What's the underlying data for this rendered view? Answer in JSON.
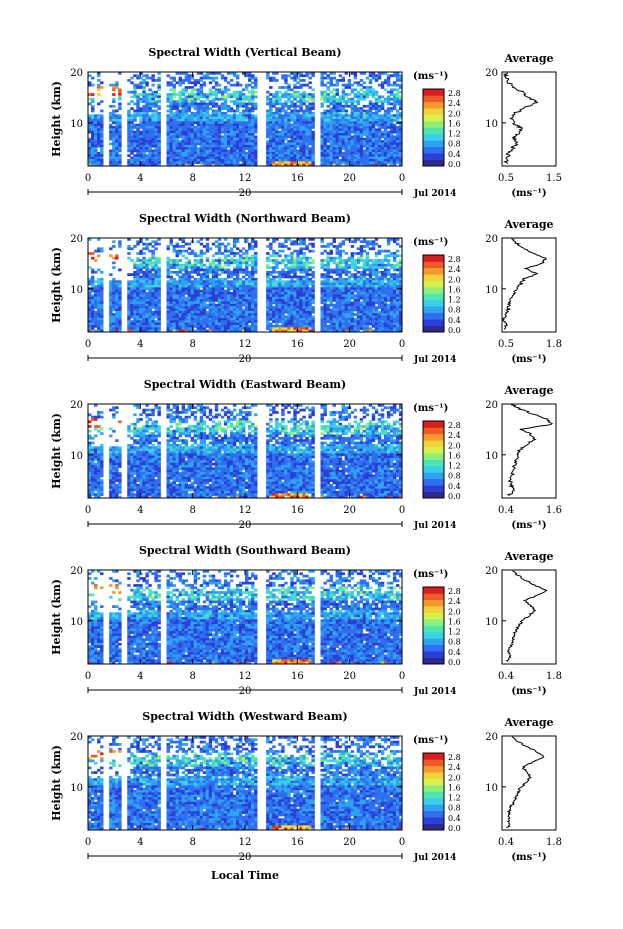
{
  "figure": {
    "date_label": "Jul 2014",
    "xlabel_bottom": "Local Time",
    "day_marker": "20",
    "ylabel_main": "Height (km)",
    "colorbar_unit": "(ms⁻¹)",
    "colorbar_ticks": [
      "0.0",
      "0.4",
      "0.8",
      "1.2",
      "1.6",
      "2.0",
      "2.4",
      "2.8"
    ],
    "colorbar_range": [
      0.0,
      3.0
    ],
    "colormap": [
      "#2c2a8c",
      "#2b3fd6",
      "#2f6ff0",
      "#2ea3f2",
      "#3cd0e8",
      "#4ee6b0",
      "#8ef07a",
      "#d6f04c",
      "#f2d23a",
      "#f39a2e",
      "#ee5a28",
      "#d81e1e"
    ],
    "heatmap_dropout_color": "#ffffff",
    "x_ticks": [
      "0",
      "4",
      "8",
      "12",
      "16",
      "20",
      "0"
    ],
    "y_ticks": [
      "20",
      "10"
    ],
    "avg_title": "Average",
    "avg_xlabel": "(ms⁻¹)"
  },
  "chart_data": [
    {
      "type": "heatmap",
      "title": "Spectral Width (Vertical Beam)",
      "xlabel": "Local Time",
      "ylabel": "Height (km)",
      "xlim": [
        0,
        24
      ],
      "ylim": [
        1.5,
        20
      ],
      "x_unit": "hours",
      "gaps_hours": [
        [
          1.2,
          1.6
        ],
        [
          2.5,
          2.9
        ],
        [
          5.5,
          6.0
        ],
        [
          12.9,
          13.5
        ],
        [
          17.2,
          17.8
        ]
      ],
      "profile": {
        "type": "line",
        "title": "Average",
        "xlim": [
          0.5,
          1.5
        ],
        "xticks": [
          "0.5",
          "1.5"
        ],
        "height_km": [
          2,
          3,
          4,
          5,
          6,
          7,
          8,
          9,
          10,
          11,
          12,
          13,
          14,
          15,
          16,
          17,
          18,
          19,
          20
        ],
        "values": [
          0.58,
          0.6,
          0.62,
          0.7,
          0.78,
          0.72,
          0.8,
          0.85,
          0.72,
          0.68,
          0.76,
          0.92,
          1.15,
          1.0,
          0.88,
          0.72,
          0.62,
          0.58,
          0.55
        ]
      }
    },
    {
      "type": "heatmap",
      "title": "Spectral Width (Northward Beam)",
      "xlabel": "Local Time",
      "ylabel": "Height (km)",
      "xlim": [
        0,
        24
      ],
      "ylim": [
        1.5,
        20
      ],
      "x_unit": "hours",
      "gaps_hours": [
        [
          1.2,
          1.6
        ],
        [
          2.5,
          2.9
        ],
        [
          5.5,
          6.0
        ],
        [
          12.9,
          13.5
        ],
        [
          17.2,
          17.8
        ]
      ],
      "profile": {
        "type": "line",
        "title": "Average",
        "xlim": [
          0.5,
          1.8
        ],
        "xticks": [
          "0.5",
          "1.8"
        ],
        "height_km": [
          2,
          3,
          4,
          5,
          6,
          7,
          8,
          9,
          10,
          11,
          12,
          13,
          14,
          15,
          16,
          17,
          18,
          19,
          20
        ],
        "values": [
          0.58,
          0.6,
          0.55,
          0.58,
          0.65,
          0.68,
          0.72,
          0.78,
          0.85,
          0.95,
          1.05,
          1.35,
          1.05,
          1.45,
          1.55,
          1.25,
          1.0,
          0.85,
          0.7
        ]
      }
    },
    {
      "type": "heatmap",
      "title": "Spectral Width (Eastward Beam)",
      "xlabel": "Local Time",
      "ylabel": "Height (km)",
      "xlim": [
        0,
        24
      ],
      "ylim": [
        1.5,
        20
      ],
      "x_unit": "hours",
      "gaps_hours": [
        [
          1.2,
          1.6
        ],
        [
          2.5,
          2.9
        ],
        [
          5.5,
          6.0
        ],
        [
          12.9,
          13.5
        ],
        [
          17.2,
          17.8
        ]
      ],
      "profile": {
        "type": "line",
        "title": "Average",
        "xlim": [
          0.4,
          1.6
        ],
        "xticks": [
          "0.4",
          "1.6"
        ],
        "height_km": [
          2,
          3,
          4,
          5,
          6,
          7,
          8,
          9,
          10,
          11,
          12,
          13,
          14,
          15,
          16,
          17,
          18,
          19,
          20
        ],
        "values": [
          0.55,
          0.65,
          0.6,
          0.58,
          0.62,
          0.65,
          0.68,
          0.7,
          0.75,
          0.8,
          0.95,
          1.1,
          1.05,
          0.8,
          1.5,
          1.4,
          1.1,
          0.8,
          0.6
        ]
      }
    },
    {
      "type": "heatmap",
      "title": "Spectral Width (Southward Beam)",
      "xlabel": "Local Time",
      "ylabel": "Height (km)",
      "xlim": [
        0,
        24
      ],
      "ylim": [
        1.5,
        20
      ],
      "x_unit": "hours",
      "gaps_hours": [
        [
          1.2,
          1.6
        ],
        [
          2.5,
          2.9
        ],
        [
          5.5,
          6.0
        ],
        [
          12.9,
          13.5
        ],
        [
          17.2,
          17.8
        ]
      ],
      "profile": {
        "type": "line",
        "title": "Average",
        "xlim": [
          0.4,
          1.8
        ],
        "xticks": [
          "0.4",
          "1.8"
        ],
        "height_km": [
          2,
          3,
          4,
          5,
          6,
          7,
          8,
          9,
          10,
          11,
          12,
          13,
          14,
          15,
          16,
          17,
          18,
          19,
          20
        ],
        "values": [
          0.55,
          0.6,
          0.58,
          0.62,
          0.68,
          0.72,
          0.75,
          0.82,
          0.92,
          1.1,
          1.25,
          1.15,
          1.0,
          1.3,
          1.55,
          1.25,
          1.0,
          0.8,
          0.65
        ]
      }
    },
    {
      "type": "heatmap",
      "title": "Spectral Width (Westward Beam)",
      "xlabel": "Local Time",
      "ylabel": "Height (km)",
      "xlim": [
        0,
        24
      ],
      "ylim": [
        1.5,
        20
      ],
      "x_unit": "hours",
      "gaps_hours": [
        [
          1.2,
          1.6
        ],
        [
          2.5,
          2.9
        ],
        [
          5.5,
          6.0
        ],
        [
          12.9,
          13.5
        ],
        [
          17.2,
          17.8
        ]
      ],
      "profile": {
        "type": "line",
        "title": "Average",
        "xlim": [
          0.4,
          1.8
        ],
        "xticks": [
          "0.4",
          "1.8"
        ],
        "height_km": [
          2,
          3,
          4,
          5,
          6,
          7,
          8,
          9,
          10,
          11,
          12,
          13,
          14,
          15,
          16,
          17,
          18,
          19,
          20
        ],
        "values": [
          0.55,
          0.58,
          0.6,
          0.58,
          0.62,
          0.7,
          0.75,
          0.82,
          0.9,
          1.05,
          1.15,
          1.0,
          0.95,
          1.25,
          1.5,
          1.3,
          1.0,
          0.8,
          0.62
        ]
      }
    }
  ]
}
